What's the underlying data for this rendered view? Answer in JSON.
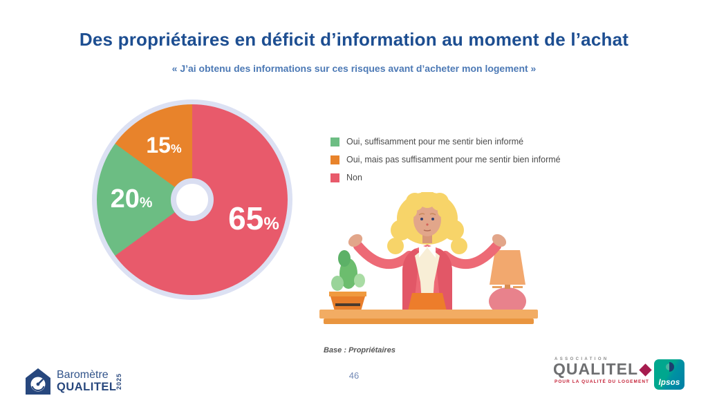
{
  "slide": {
    "title": "Des propriétaires en déficit d’information au moment de l’achat",
    "subtitle": "« J’ai obtenu des informations sur ces risques avant d’acheter mon logement »",
    "base_note": "Base : Propriétaires",
    "page_number": "46"
  },
  "chart_data": {
    "type": "pie",
    "donut": true,
    "unit": "%",
    "legend_position": "right",
    "title": "« J’ai obtenu des informations sur ces risques avant d’acheter mon logement »",
    "slices": [
      {
        "label": "Non",
        "value": 65,
        "color": "#e85a6b"
      },
      {
        "label": "Oui, suffisamment pour me sentir bien informé",
        "value": 20,
        "color": "#6cbd83"
      },
      {
        "label": "Oui, mais pas suffisamment pour me sentir bien informé",
        "value": 15,
        "color": "#e8832b"
      }
    ],
    "legend": [
      {
        "label": "Oui, suffisamment pour me sentir bien informé",
        "color": "#6cbd83"
      },
      {
        "label": "Oui, mais pas suffisamment pour me sentir bien informé",
        "color": "#e8832b"
      },
      {
        "label": "Non",
        "color": "#e85a6b"
      }
    ]
  },
  "footer": {
    "barometre_logo": {
      "line1": "Baromètre",
      "line2": "QUALITEL",
      "year": "2025"
    },
    "qualitel_logo": {
      "association": "ASSOCIATION",
      "name": "QUALITEL",
      "tagline": "POUR LA QUALITÉ DU LOGEMENT"
    },
    "ipsos_logo": {
      "name": "Ipsos"
    }
  },
  "colors": {
    "title_blue": "#1d4e91",
    "subtitle_blue": "#4c79b5",
    "donut_ring": "#dce1f3",
    "red": "#e85a6b",
    "green": "#6cbd83",
    "orange": "#e8832b",
    "navy_logo": "#27477d",
    "qualitel_crimson": "#a61c4f",
    "ipsos_teal": "#00a78e"
  }
}
